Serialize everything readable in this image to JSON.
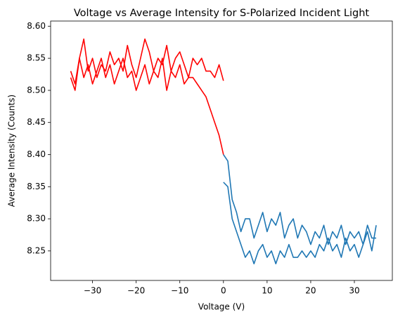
{
  "chart_data": {
    "type": "line",
    "title": "Voltage vs Average Intensity for S-Polarized Incident Light",
    "x_label": "Voltage (V)",
    "y_label": "Average Intensity (Counts)",
    "xlim": [
      -39.6,
      38.7
    ],
    "ylim": [
      8.204,
      8.608
    ],
    "xticks": [
      {
        "value": -30,
        "label": "−30"
      },
      {
        "value": -20,
        "label": "−20"
      },
      {
        "value": -10,
        "label": "−10"
      },
      0,
      10,
      20,
      30
    ],
    "yticks": [
      8.25,
      {
        "value": 8.3,
        "label": "8.30"
      },
      8.35,
      {
        "value": 8.4,
        "label": "8.40"
      },
      8.45,
      {
        "value": 8.5,
        "label": "8.50"
      },
      8.55,
      {
        "value": 8.6,
        "label": "8.60"
      }
    ],
    "series": [
      {
        "color": "#ff0000",
        "x": [
          -35,
          -34,
          -33,
          -32,
          -31,
          -30,
          -29,
          -28,
          -27,
          -26,
          -25,
          -24,
          -23,
          -22,
          -21,
          -20,
          -19,
          -18,
          -17,
          -16,
          -15,
          -14,
          -13,
          -12,
          -11,
          -10,
          -9,
          -8,
          -7,
          -6,
          -5,
          -4,
          -3,
          -2,
          -1,
          0
        ],
        "values": [
          8.52,
          8.5,
          8.55,
          8.58,
          8.53,
          8.55,
          8.52,
          8.54,
          8.53,
          8.56,
          8.54,
          8.55,
          8.53,
          8.57,
          8.54,
          8.52,
          8.55,
          8.58,
          8.56,
          8.53,
          8.55,
          8.54,
          8.57,
          8.53,
          8.55,
          8.56,
          8.54,
          8.52,
          8.55,
          8.54,
          8.55,
          8.53,
          8.53,
          8.52,
          8.54,
          8.515
        ]
      },
      {
        "color": "#ff0000",
        "x": [
          -35,
          -34,
          -33,
          -32,
          -31,
          -30,
          -29,
          -28,
          -27,
          -26,
          -25,
          -24,
          -23,
          -22,
          -21,
          -20,
          -19,
          -18,
          -17,
          -16,
          -15,
          -14,
          -13,
          -12,
          -11,
          -10,
          -9,
          -8,
          -7,
          -6,
          -5,
          -4,
          -3,
          -2,
          -1,
          0
        ],
        "values": [
          8.53,
          8.51,
          8.55,
          8.52,
          8.54,
          8.51,
          8.53,
          8.55,
          8.52,
          8.54,
          8.51,
          8.53,
          8.55,
          8.52,
          8.53,
          8.5,
          8.52,
          8.54,
          8.51,
          8.53,
          8.52,
          8.55,
          8.5,
          8.53,
          8.52,
          8.54,
          8.51,
          8.52,
          8.52,
          8.51,
          8.5,
          8.49,
          8.47,
          8.45,
          8.43,
          8.4
        ]
      },
      {
        "color": "#1f77b4",
        "x": [
          0,
          1,
          2,
          3,
          4,
          5,
          6,
          7,
          8,
          9,
          10,
          11,
          12,
          13,
          14,
          15,
          16,
          17,
          18,
          19,
          20,
          21,
          22,
          23,
          24,
          25,
          26,
          27,
          28,
          29,
          30,
          31,
          32,
          33,
          34,
          35
        ],
        "values": [
          8.4,
          8.39,
          8.33,
          8.31,
          8.28,
          8.3,
          8.3,
          8.27,
          8.29,
          8.31,
          8.28,
          8.3,
          8.29,
          8.31,
          8.27,
          8.29,
          8.3,
          8.27,
          8.29,
          8.28,
          8.26,
          8.28,
          8.27,
          8.29,
          8.26,
          8.28,
          8.27,
          8.29,
          8.26,
          8.28,
          8.27,
          8.28,
          8.26,
          8.29,
          8.27,
          8.27
        ]
      },
      {
        "color": "#1f77b4",
        "x": [
          0,
          1,
          2,
          3,
          4,
          5,
          6,
          7,
          8,
          9,
          10,
          11,
          12,
          13,
          14,
          15,
          16,
          17,
          18,
          19,
          20,
          21,
          22,
          23,
          24,
          25,
          26,
          27,
          28,
          29,
          30,
          31,
          32,
          33,
          34,
          35
        ],
        "values": [
          8.357,
          8.35,
          8.3,
          8.28,
          8.26,
          8.24,
          8.25,
          8.23,
          8.25,
          8.26,
          8.24,
          8.25,
          8.23,
          8.25,
          8.24,
          8.26,
          8.24,
          8.24,
          8.25,
          8.24,
          8.25,
          8.24,
          8.26,
          8.25,
          8.27,
          8.25,
          8.26,
          8.24,
          8.27,
          8.25,
          8.26,
          8.24,
          8.26,
          8.28,
          8.25,
          8.29
        ]
      }
    ]
  }
}
